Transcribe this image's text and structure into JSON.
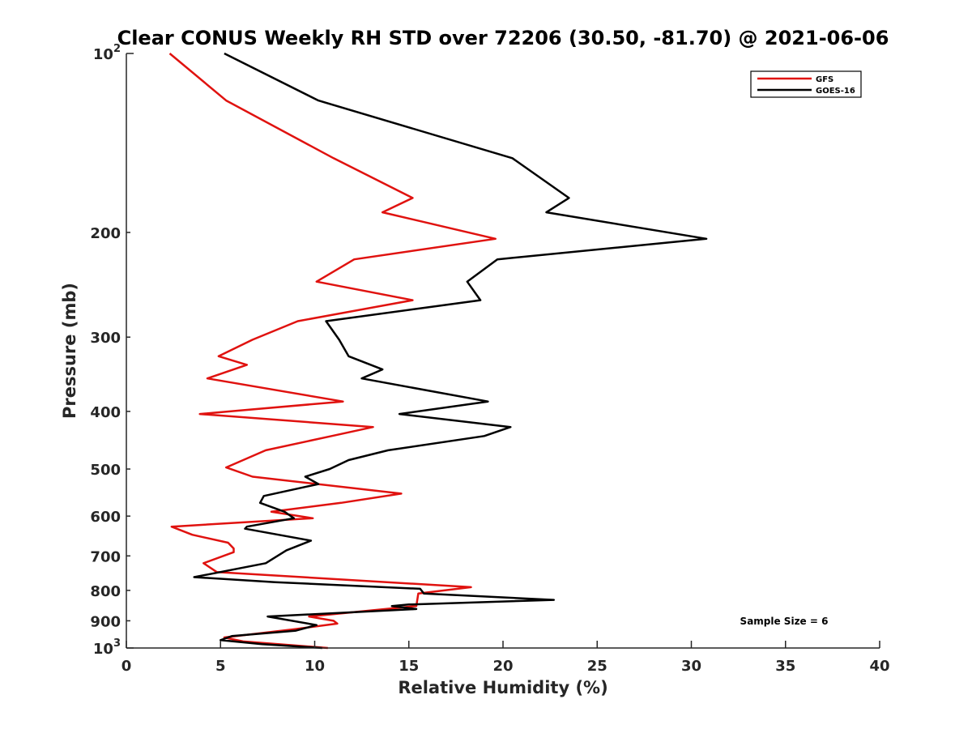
{
  "chart_data": {
    "type": "line",
    "title": "Clear CONUS Weekly RH STD over 72206 (30.50, -81.70) @ 2021-06-06",
    "xlabel": "Relative Humidity (%)",
    "ylabel": "Pressure (mb)",
    "xlim": [
      0,
      40
    ],
    "ylim": [
      100,
      1000
    ],
    "yscale": "log",
    "y_reversed": true,
    "grid": false,
    "legend_position": "top-right",
    "x_ticks": [
      0,
      5,
      10,
      15,
      20,
      25,
      30,
      35,
      40
    ],
    "y_ticks": [
      {
        "value": 100,
        "base": "10",
        "exp": "2"
      },
      {
        "value": 200,
        "label": "200"
      },
      {
        "value": 300,
        "label": "300"
      },
      {
        "value": 400,
        "label": "400"
      },
      {
        "value": 500,
        "label": "500"
      },
      {
        "value": 600,
        "label": "600"
      },
      {
        "value": 700,
        "label": "700"
      },
      {
        "value": 800,
        "label": "800"
      },
      {
        "value": 900,
        "label": "900"
      },
      {
        "value": 1000,
        "base": "10",
        "exp": "3"
      }
    ],
    "annotation": "Sample Size = 6",
    "series": [
      {
        "name": "GFS",
        "color": "#e0120f",
        "points": [
          [
            2.3,
            100
          ],
          [
            5.3,
            120
          ],
          [
            11.0,
            150
          ],
          [
            15.2,
            175
          ],
          [
            13.6,
            185
          ],
          [
            19.6,
            205
          ],
          [
            12.1,
            222
          ],
          [
            10.1,
            242
          ],
          [
            15.2,
            260
          ],
          [
            9.1,
            282
          ],
          [
            6.7,
            303
          ],
          [
            4.9,
            323
          ],
          [
            6.4,
            334
          ],
          [
            4.3,
            352
          ],
          [
            11.5,
            385
          ],
          [
            3.9,
            404
          ],
          [
            13.1,
            425
          ],
          [
            10.9,
            440
          ],
          [
            7.4,
            465
          ],
          [
            5.3,
            497
          ],
          [
            6.7,
            515
          ],
          [
            14.6,
            550
          ],
          [
            11.4,
            570
          ],
          [
            7.7,
            590
          ],
          [
            9.9,
            605
          ],
          [
            2.4,
            625
          ],
          [
            3.5,
            645
          ],
          [
            5.4,
            665
          ],
          [
            5.7,
            680
          ],
          [
            5.7,
            690
          ],
          [
            4.1,
            720
          ],
          [
            4.8,
            745
          ],
          [
            18.3,
            790
          ],
          [
            15.5,
            810
          ],
          [
            15.4,
            850
          ],
          [
            9.7,
            885
          ],
          [
            11.0,
            900
          ],
          [
            11.2,
            910
          ],
          [
            8.9,
            930
          ],
          [
            5.2,
            960
          ],
          [
            6.2,
            975
          ],
          [
            10.7,
            1000
          ]
        ]
      },
      {
        "name": "GOES-16",
        "color": "#000000",
        "points": [
          [
            5.2,
            100
          ],
          [
            10.2,
            120
          ],
          [
            20.5,
            150
          ],
          [
            23.5,
            175
          ],
          [
            22.3,
            185
          ],
          [
            30.8,
            205
          ],
          [
            19.7,
            222
          ],
          [
            18.1,
            242
          ],
          [
            18.8,
            260
          ],
          [
            10.6,
            282
          ],
          [
            11.3,
            303
          ],
          [
            11.8,
            323
          ],
          [
            13.6,
            340
          ],
          [
            12.5,
            352
          ],
          [
            19.2,
            385
          ],
          [
            14.5,
            404
          ],
          [
            20.4,
            425
          ],
          [
            19.0,
            440
          ],
          [
            13.9,
            465
          ],
          [
            11.8,
            483
          ],
          [
            10.8,
            500
          ],
          [
            9.5,
            515
          ],
          [
            10.2,
            530
          ],
          [
            7.3,
            555
          ],
          [
            7.1,
            570
          ],
          [
            8.4,
            590
          ],
          [
            8.9,
            605
          ],
          [
            6.4,
            625
          ],
          [
            6.3,
            630
          ],
          [
            9.8,
            660
          ],
          [
            8.5,
            685
          ],
          [
            7.4,
            720
          ],
          [
            3.6,
            760
          ],
          [
            7.9,
            775
          ],
          [
            15.6,
            795
          ],
          [
            15.8,
            810
          ],
          [
            22.7,
            830
          ],
          [
            15.0,
            845
          ],
          [
            14.1,
            850
          ],
          [
            15.4,
            860
          ],
          [
            7.5,
            885
          ],
          [
            10.1,
            915
          ],
          [
            9.0,
            935
          ],
          [
            5.6,
            955
          ],
          [
            5.0,
            970
          ],
          [
            7.2,
            985
          ],
          [
            10.4,
            1000
          ]
        ]
      }
    ]
  }
}
